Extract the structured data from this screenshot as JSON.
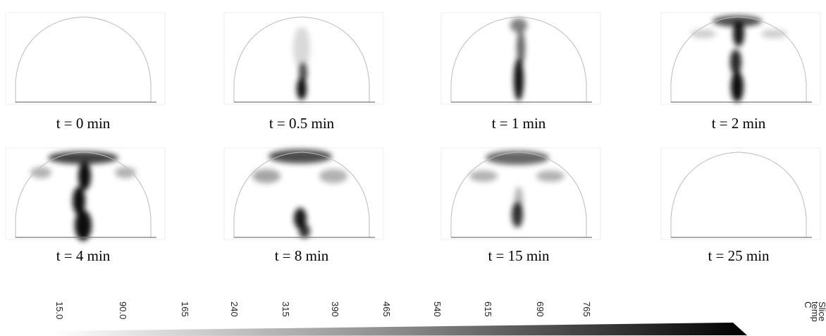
{
  "panels": [
    {
      "label": "t = 0 min"
    },
    {
      "label": "t = 0.5 min"
    },
    {
      "label": "t = 1 min"
    },
    {
      "label": "t = 2 min"
    },
    {
      "label": "t = 4 min"
    },
    {
      "label": "t = 8 min"
    },
    {
      "label": "t = 15 min"
    },
    {
      "label": "t = 25 min"
    }
  ],
  "colorbar": {
    "ticks": [
      "15.0",
      "90.0",
      "165",
      "240",
      "315",
      "390",
      "465",
      "540",
      "615",
      "690",
      "765"
    ],
    "title": [
      "Slice",
      "temp",
      "C"
    ]
  }
}
